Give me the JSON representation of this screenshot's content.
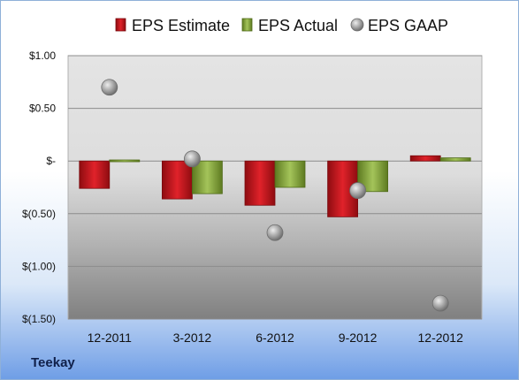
{
  "company": "Teekay",
  "chart_data": {
    "type": "bar",
    "categories": [
      "12-2011",
      "3-2012",
      "6-2012",
      "9-2012",
      "12-2012"
    ],
    "series": [
      {
        "name": "EPS Estimate",
        "kind": "bar",
        "color": "#c0141b",
        "values": [
          -0.26,
          -0.36,
          -0.42,
          -0.53,
          0.05
        ]
      },
      {
        "name": "EPS Actual",
        "kind": "bar",
        "color": "#8aab3a",
        "values": [
          0.01,
          -0.31,
          -0.25,
          -0.29,
          0.03
        ]
      },
      {
        "name": "EPS GAAP",
        "kind": "marker",
        "color": "#9a9a9a",
        "values": [
          0.7,
          0.02,
          -0.68,
          -0.28,
          -1.35
        ]
      }
    ],
    "yticks": [
      1.0,
      0.5,
      0,
      -0.5,
      -1.0,
      -1.5
    ],
    "ytick_labels": [
      "$1.00",
      "$0.50",
      "$-",
      "$(0.50)",
      "$(1.00)",
      "$(1.50)"
    ],
    "ylim": [
      -1.5,
      1.0
    ],
    "xlabel": "",
    "ylabel": "",
    "legend_position": "top",
    "grid": true
  }
}
